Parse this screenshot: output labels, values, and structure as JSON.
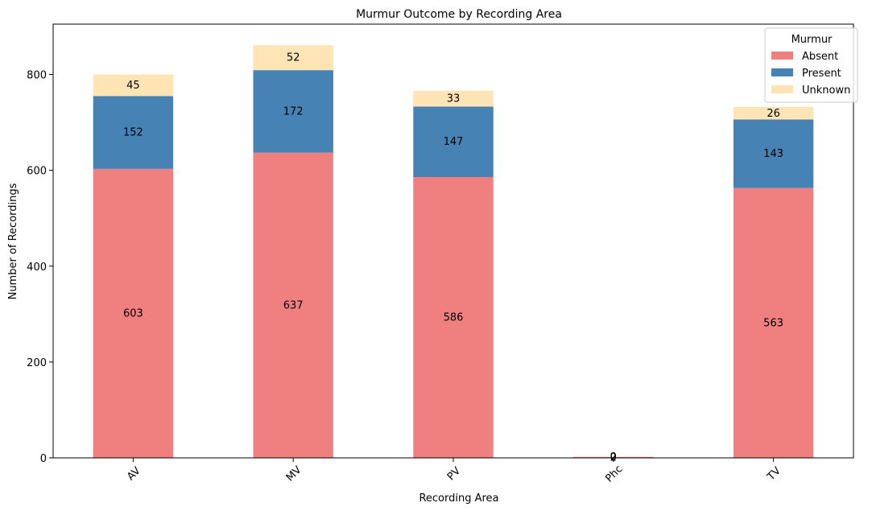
{
  "chart_data": {
    "type": "bar",
    "stacked": true,
    "title": "Murmur Outcome by Recording Area",
    "xlabel": "Recording Area",
    "ylabel": "Number of Recordings",
    "categories": [
      "AV",
      "MV",
      "PV",
      "Phc",
      "TV"
    ],
    "series": [
      {
        "name": "Absent",
        "color": "#f08080",
        "values": [
          603,
          637,
          586,
          2,
          563
        ]
      },
      {
        "name": "Present",
        "color": "#4682b4",
        "values": [
          152,
          172,
          147,
          0,
          143
        ]
      },
      {
        "name": "Unknown",
        "color": "#ffe4b5",
        "values": [
          45,
          52,
          33,
          0,
          26
        ]
      }
    ],
    "ylim": [
      0,
      905
    ],
    "yticks": [
      0,
      200,
      400,
      600,
      800
    ],
    "legend_title": "Murmur",
    "legend_position": "top-right",
    "grid": false
  }
}
